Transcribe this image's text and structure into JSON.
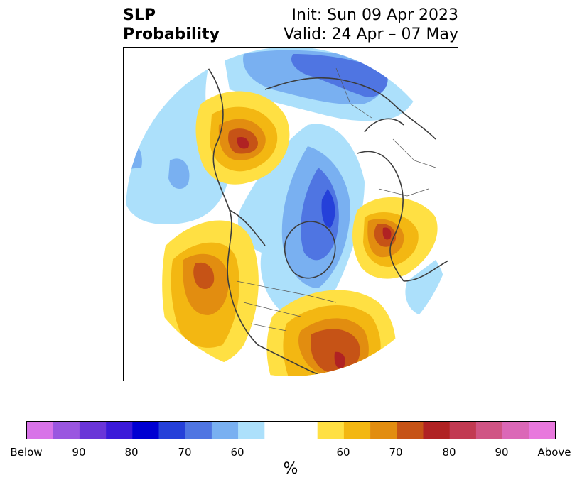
{
  "title": {
    "left_line1": "SLP",
    "left_line2": "Probability",
    "init": "Init: Sun 09 Apr 2023",
    "valid": "Valid: 24 Apr – 07 May"
  },
  "colorbar": {
    "unit": "%",
    "colors": [
      "#d873e8",
      "#9a56e0",
      "#6a35d8",
      "#3b1ad9",
      "#0000d2",
      "#2540d9",
      "#4f75e2",
      "#79b0f1",
      "#ace0fb",
      "#ffffff",
      "#ffffff",
      "#ffe043",
      "#f3b712",
      "#e28d10",
      "#c65316",
      "#b02223",
      "#c23a52",
      "#d05484",
      "#db68b7",
      "#e878dd"
    ],
    "labels": [
      "Below",
      "90",
      "80",
      "70",
      "60",
      "60",
      "70",
      "80",
      "90",
      "Above"
    ]
  },
  "map": {
    "below_colors": {
      "p60": "#ace0fb",
      "p70": "#79b0f1",
      "p80": "#4f75e2",
      "p90": "#2540d9"
    },
    "above_colors": {
      "p60": "#ffe043",
      "p70": "#f3b712",
      "p80": "#e28d10",
      "p90": "#c65316",
      "p95": "#b02223"
    }
  }
}
